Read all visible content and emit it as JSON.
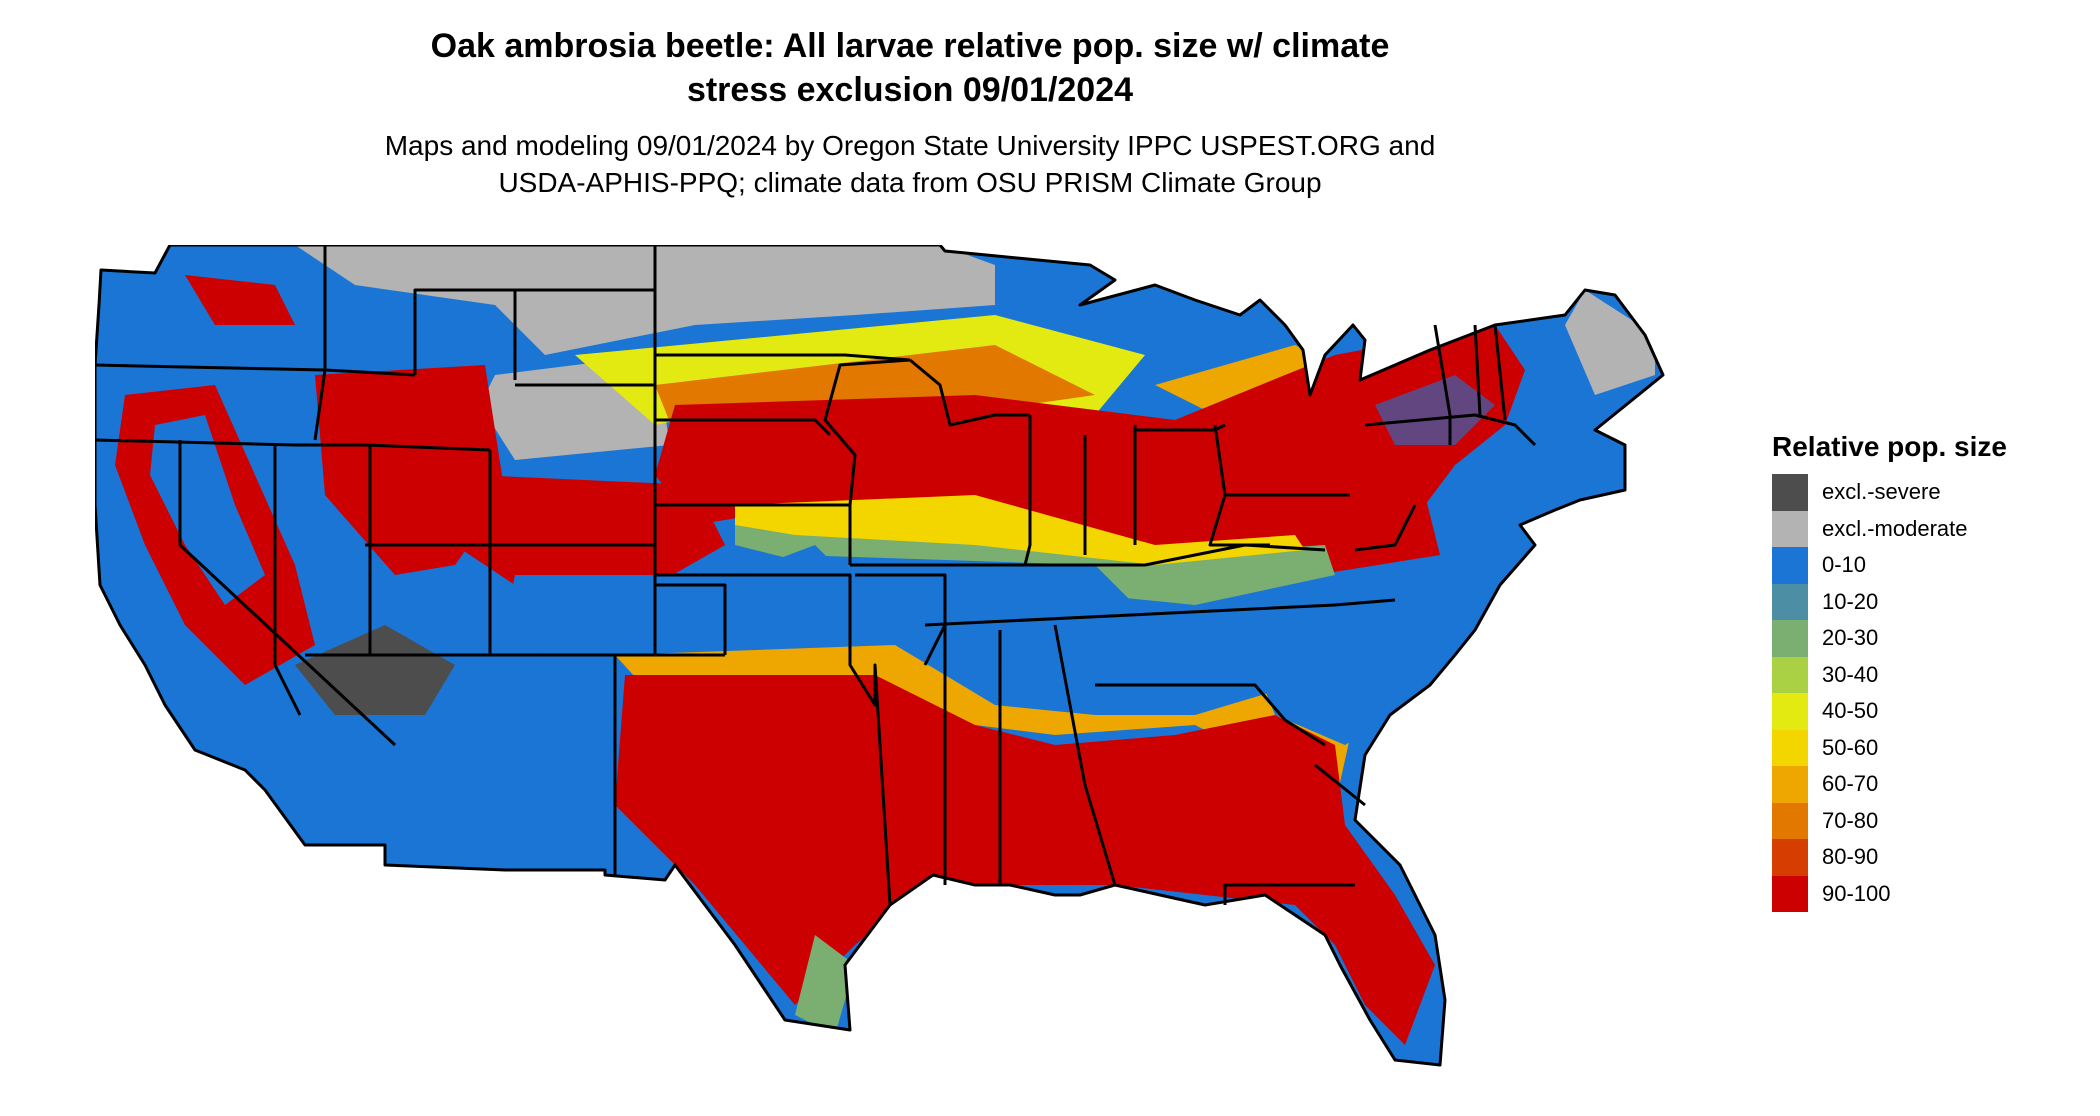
{
  "title_line1": "Oak ambrosia beetle: All larvae relative pop. size w/ climate",
  "title_line2": "stress exclusion 09/01/2024",
  "subtitle_line1": "Maps and modeling 09/01/2024 by Oregon State University IPPC USPEST.ORG and",
  "subtitle_line2": "USDA-APHIS-PPQ; climate data from OSU PRISM Climate Group",
  "legend": {
    "title": "Relative pop. size",
    "items": [
      {
        "label": "excl.-severe",
        "color": "#4d4d4d"
      },
      {
        "label": "excl.-moderate",
        "color": "#b3b3b3"
      },
      {
        "label": "0-10",
        "color": "#1a75d4"
      },
      {
        "label": "10-20",
        "color": "#4c8fa5"
      },
      {
        "label": "20-30",
        "color": "#7baf72"
      },
      {
        "label": "30-40",
        "color": "#aad044"
      },
      {
        "label": "40-50",
        "color": "#e3ea12"
      },
      {
        "label": "50-60",
        "color": "#f3d500"
      },
      {
        "label": "60-70",
        "color": "#eea600"
      },
      {
        "label": "70-80",
        "color": "#e27800"
      },
      {
        "label": "80-90",
        "color": "#d63d00"
      },
      {
        "label": "90-100",
        "color": "#cc0000"
      }
    ]
  }
}
